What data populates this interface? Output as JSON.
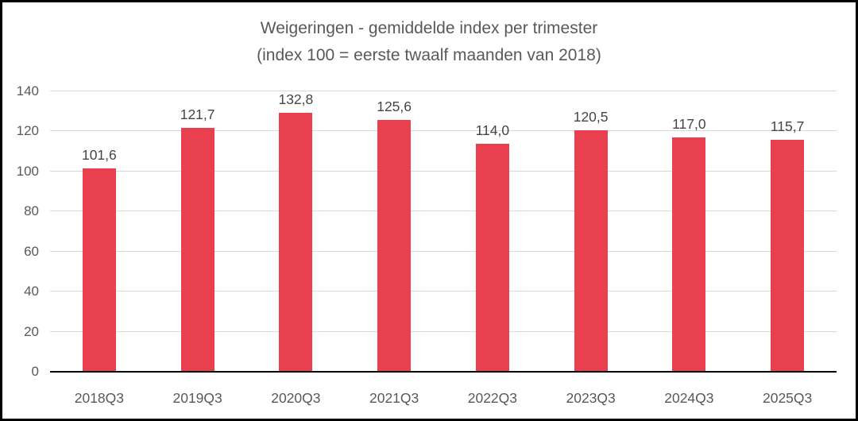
{
  "window": {
    "background_color": "#ffffff",
    "frame_border_color": "#000000"
  },
  "chart_data": {
    "type": "bar",
    "title": "Weigeringen - gemiddelde index per trimester",
    "subtitle": "(index 100 = eerste twaalf maanden van 2018)",
    "categories": [
      "2018Q3",
      "2019Q3",
      "2020Q3",
      "2021Q3",
      "2022Q3",
      "2023Q3",
      "2024Q3",
      "2025Q3"
    ],
    "values": [
      101.6,
      121.7,
      132.8,
      125.6,
      114.0,
      120.5,
      117.0,
      115.7
    ],
    "value_labels": [
      "101,6",
      "121,7",
      "132,8",
      "125,6",
      "114,0",
      "120,5",
      "117,0",
      "115,7"
    ],
    "xlabel": "",
    "ylabel": "",
    "ylim": [
      0,
      140
    ],
    "yticks": [
      0,
      20,
      40,
      60,
      80,
      100,
      120,
      140
    ],
    "grid": true,
    "legend_position": "none",
    "bar_color": "#e8404f",
    "gridline_color": "#d9d9d9",
    "baseline_color": "#000000",
    "title_color": "#595959",
    "tick_label_color": "#595959",
    "data_label_color": "#454545"
  }
}
